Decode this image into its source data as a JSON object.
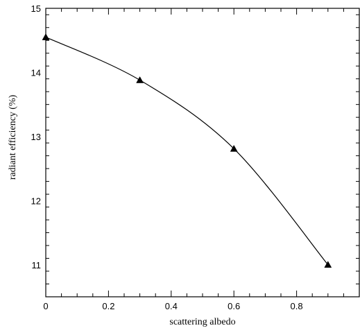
{
  "chart_data": {
    "type": "line",
    "title": "",
    "xlabel": "scattering albedo",
    "ylabel": "radiant efficiency (%)",
    "xlim": [
      0,
      1.0
    ],
    "ylim": [
      10.5,
      15
    ],
    "x_ticks": [
      0,
      0.2,
      0.4,
      0.6,
      0.8
    ],
    "y_ticks": [
      11,
      12,
      13,
      14,
      15
    ],
    "x_tick_labels": [
      "0",
      "0.2",
      "0.4",
      "0.6",
      "0.8"
    ],
    "y_tick_labels": [
      "11",
      "12",
      "13",
      "14",
      "15"
    ],
    "grid": false,
    "legend": "none",
    "series": [
      {
        "marker": "triangle",
        "color": "#000000",
        "x": [
          0,
          0.3,
          0.6,
          0.9
        ],
        "y": [
          14.55,
          13.88,
          12.81,
          11.0
        ]
      }
    ]
  }
}
